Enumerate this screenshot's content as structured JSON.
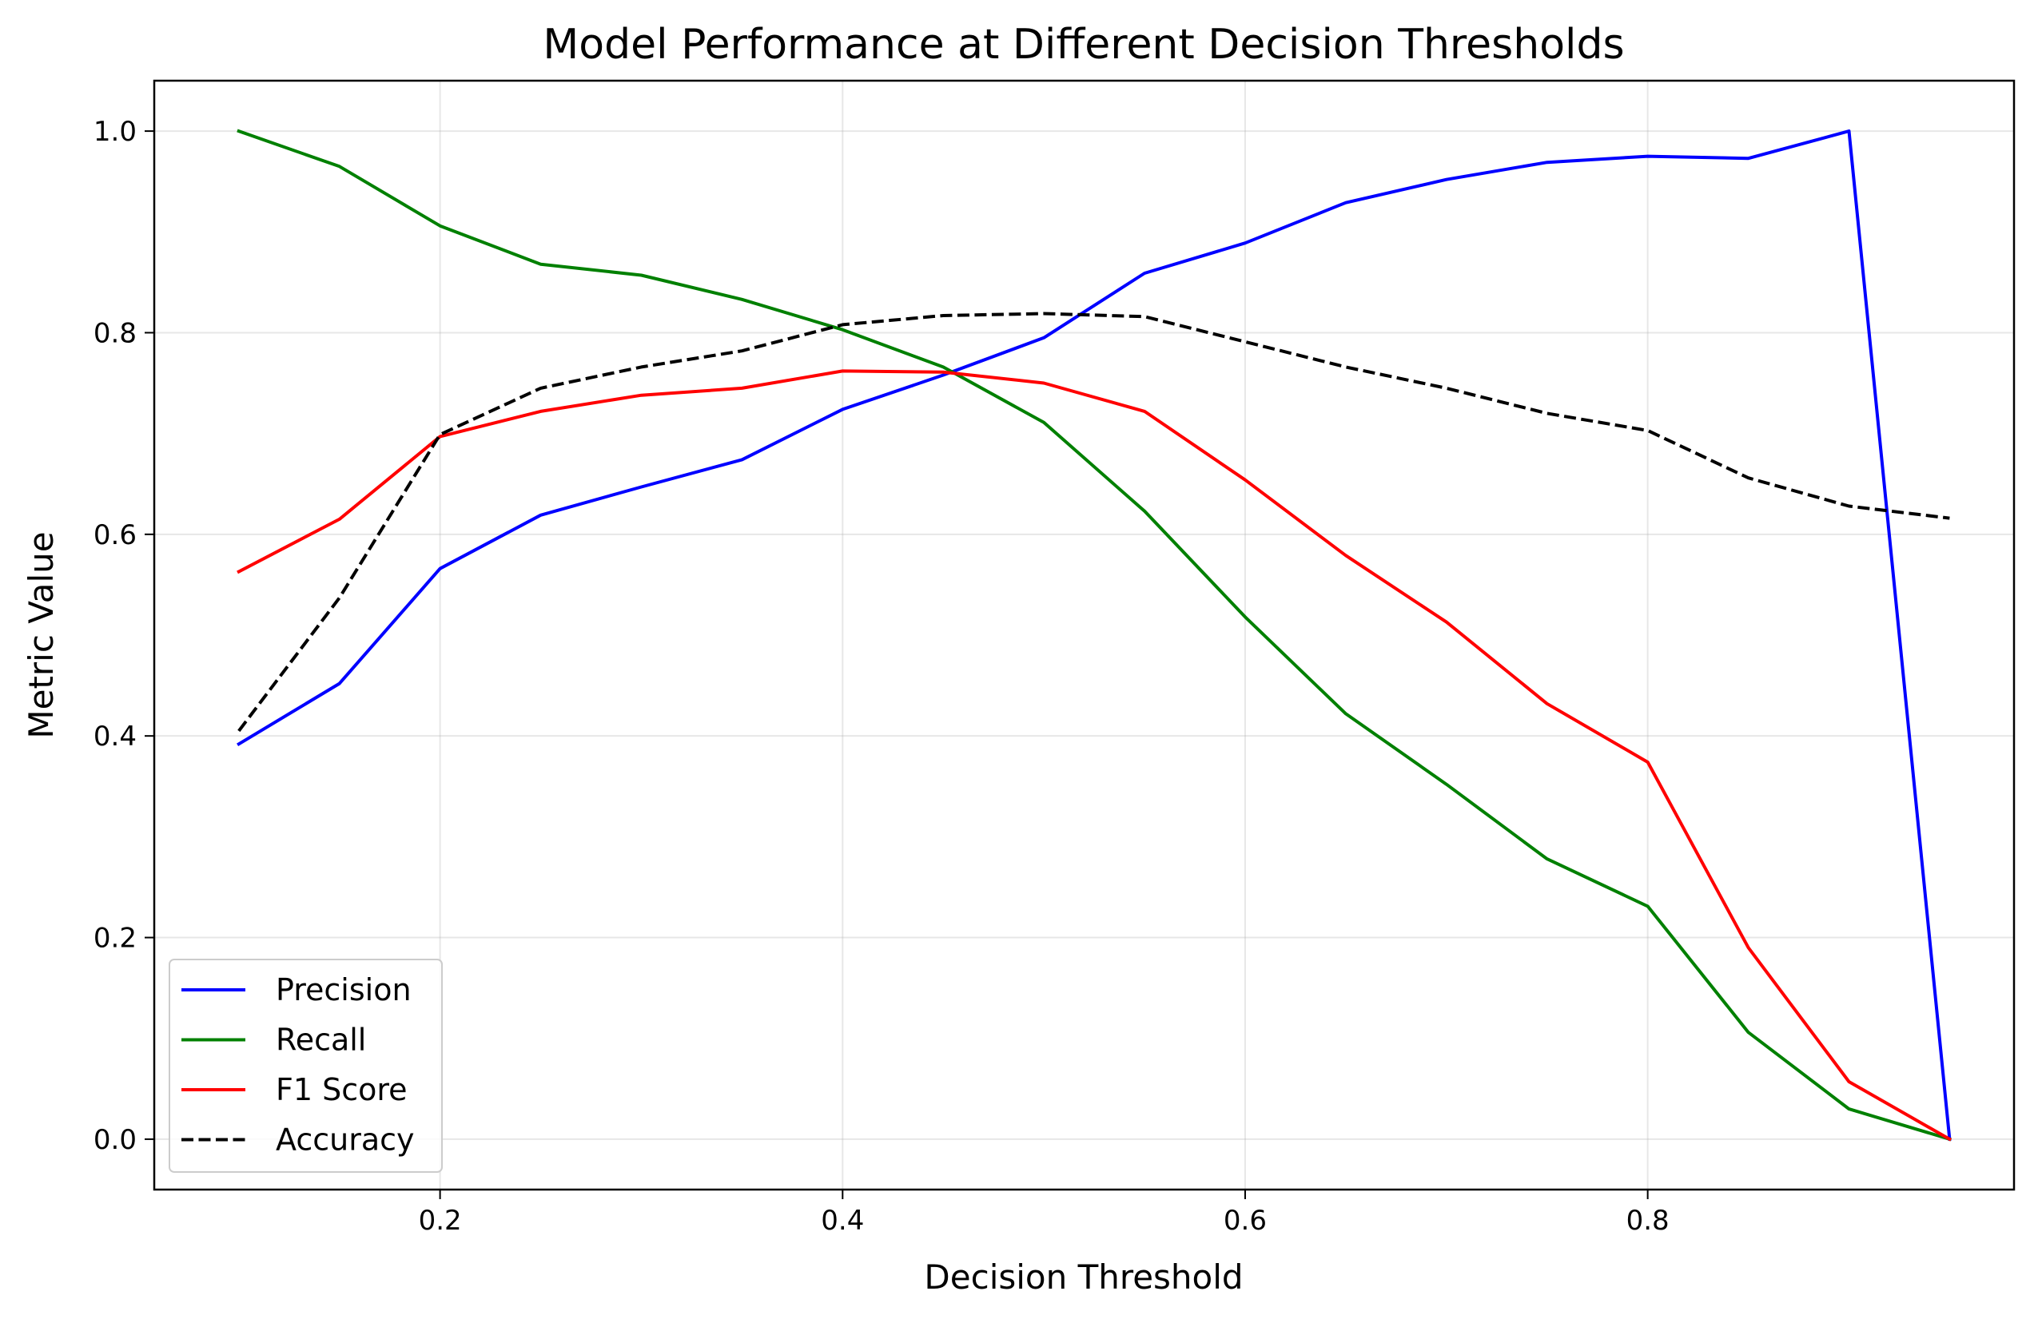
{
  "chart_data": {
    "type": "line",
    "title": "Model Performance at Different Decision Thresholds",
    "xlabel": "Decision Threshold",
    "ylabel": "Metric Value",
    "xlim": [
      0.058,
      0.982
    ],
    "ylim": [
      -0.05,
      1.05
    ],
    "xticks": [
      0.2,
      0.4,
      0.6,
      0.8
    ],
    "xtick_labels": [
      "0.2",
      "0.4",
      "0.6",
      "0.8"
    ],
    "yticks": [
      0.0,
      0.2,
      0.4,
      0.6,
      0.8,
      1.0
    ],
    "ytick_labels": [
      "0.0",
      "0.2",
      "0.4",
      "0.6",
      "0.8",
      "1.0"
    ],
    "grid": true,
    "legend_position": "lower-left",
    "x": [
      0.1,
      0.15,
      0.2,
      0.25,
      0.3,
      0.35,
      0.4,
      0.45,
      0.5,
      0.55,
      0.6,
      0.65,
      0.7,
      0.75,
      0.8,
      0.85,
      0.9,
      0.95
    ],
    "series": [
      {
        "name": "Precision",
        "color": "#0000ff",
        "dash": "solid",
        "values": [
          0.392,
          0.452,
          0.566,
          0.619,
          0.647,
          0.674,
          0.724,
          0.758,
          0.795,
          0.859,
          0.889,
          0.929,
          0.952,
          0.969,
          0.975,
          0.973,
          1.0,
          0.0
        ]
      },
      {
        "name": "Recall",
        "color": "#008000",
        "dash": "solid",
        "values": [
          1.0,
          0.965,
          0.906,
          0.868,
          0.857,
          0.833,
          0.803,
          0.766,
          0.711,
          0.623,
          0.518,
          0.422,
          0.352,
          0.278,
          0.231,
          0.106,
          0.03,
          0.0
        ]
      },
      {
        "name": "F1 Score",
        "color": "#ff0000",
        "dash": "solid",
        "values": [
          0.563,
          0.615,
          0.697,
          0.722,
          0.738,
          0.745,
          0.762,
          0.761,
          0.75,
          0.722,
          0.654,
          0.579,
          0.513,
          0.432,
          0.374,
          0.19,
          0.057,
          0.0
        ]
      },
      {
        "name": "Accuracy",
        "color": "#000000",
        "dash": "dashed",
        "values": [
          0.405,
          0.537,
          0.699,
          0.745,
          0.766,
          0.782,
          0.808,
          0.817,
          0.819,
          0.816,
          0.791,
          0.766,
          0.745,
          0.72,
          0.703,
          0.656,
          0.628,
          0.616
        ]
      }
    ]
  }
}
